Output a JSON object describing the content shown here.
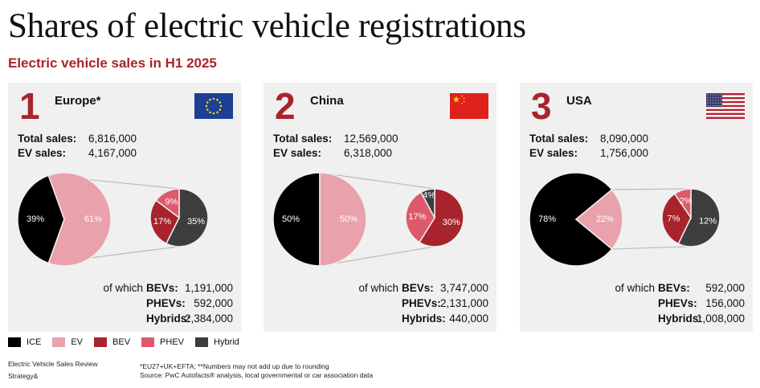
{
  "title": "Shares of electric vehicle registrations",
  "subtitle": "Electric vehicle sales in H1 2025",
  "labels": {
    "total_sales": "Total sales:",
    "ev_sales": "EV sales:",
    "of_which": "of which",
    "bevs": "BEVs:",
    "phevs": "PHEVs:",
    "hybrids": "Hybrids:"
  },
  "colors": {
    "ICE": "#000000",
    "EV": "#e9a1ab",
    "BEV": "#a8242c",
    "PHEV": "#dd5a6c",
    "Hybrid": "#3d3d3d"
  },
  "legend": [
    "ICE",
    "EV",
    "BEV",
    "PHEV",
    "Hybrid"
  ],
  "chart_data": [
    {
      "type": "pie",
      "rank": "1",
      "region": "Europe*",
      "flag": "eu-flag",
      "total_sales": "6,816,000",
      "ev_sales": "4,167,000",
      "main_pie": [
        {
          "name": "ICE",
          "value": 39,
          "label": "39%"
        },
        {
          "name": "EV",
          "value": 61,
          "label": "61%"
        }
      ],
      "ev_breakdown": [
        {
          "name": "Hybrid",
          "value": 35,
          "label": "35%"
        },
        {
          "name": "BEV",
          "value": 17,
          "label": "17%"
        },
        {
          "name": "PHEV",
          "value": 9,
          "label": "9%"
        }
      ],
      "bevs": "1,191,000",
      "phevs": "592,000",
      "hybrids": "2,384,000"
    },
    {
      "type": "pie",
      "rank": "2",
      "region": "China",
      "flag": "china-flag",
      "total_sales": "12,569,000",
      "ev_sales": "6,318,000",
      "main_pie": [
        {
          "name": "ICE",
          "value": 50,
          "label": "50%"
        },
        {
          "name": "EV",
          "value": 50,
          "label": "50%"
        }
      ],
      "ev_breakdown": [
        {
          "name": "BEV",
          "value": 30,
          "label": "30%"
        },
        {
          "name": "PHEV",
          "value": 17,
          "label": "17%"
        },
        {
          "name": "Hybrid",
          "value": 4,
          "label": "4%"
        }
      ],
      "bevs": "3,747,000",
      "phevs": "2,131,000",
      "hybrids": "440,000"
    },
    {
      "type": "pie",
      "rank": "3",
      "region": "USA",
      "flag": "usa-flag",
      "total_sales": "8,090,000",
      "ev_sales": "1,756,000",
      "main_pie": [
        {
          "name": "ICE",
          "value": 78,
          "label": "78%"
        },
        {
          "name": "EV",
          "value": 22,
          "label": "22%"
        }
      ],
      "ev_breakdown": [
        {
          "name": "Hybrid",
          "value": 12,
          "label": "12%"
        },
        {
          "name": "BEV",
          "value": 7,
          "label": "7%"
        },
        {
          "name": "PHEV",
          "value": 2,
          "label": "2%"
        }
      ],
      "bevs": "592,000",
      "phevs": "156,000",
      "hybrids": "1,008,000"
    }
  ],
  "footer": {
    "left_line1": "Electric Vehicle Sales Review",
    "left_line2": "Strategy&",
    "note": "*EU27+UK+EFTA; **Numbers may not add up due to rounding",
    "source": "Source: PwC Autofacts® analysis, local governmental or car association data"
  }
}
